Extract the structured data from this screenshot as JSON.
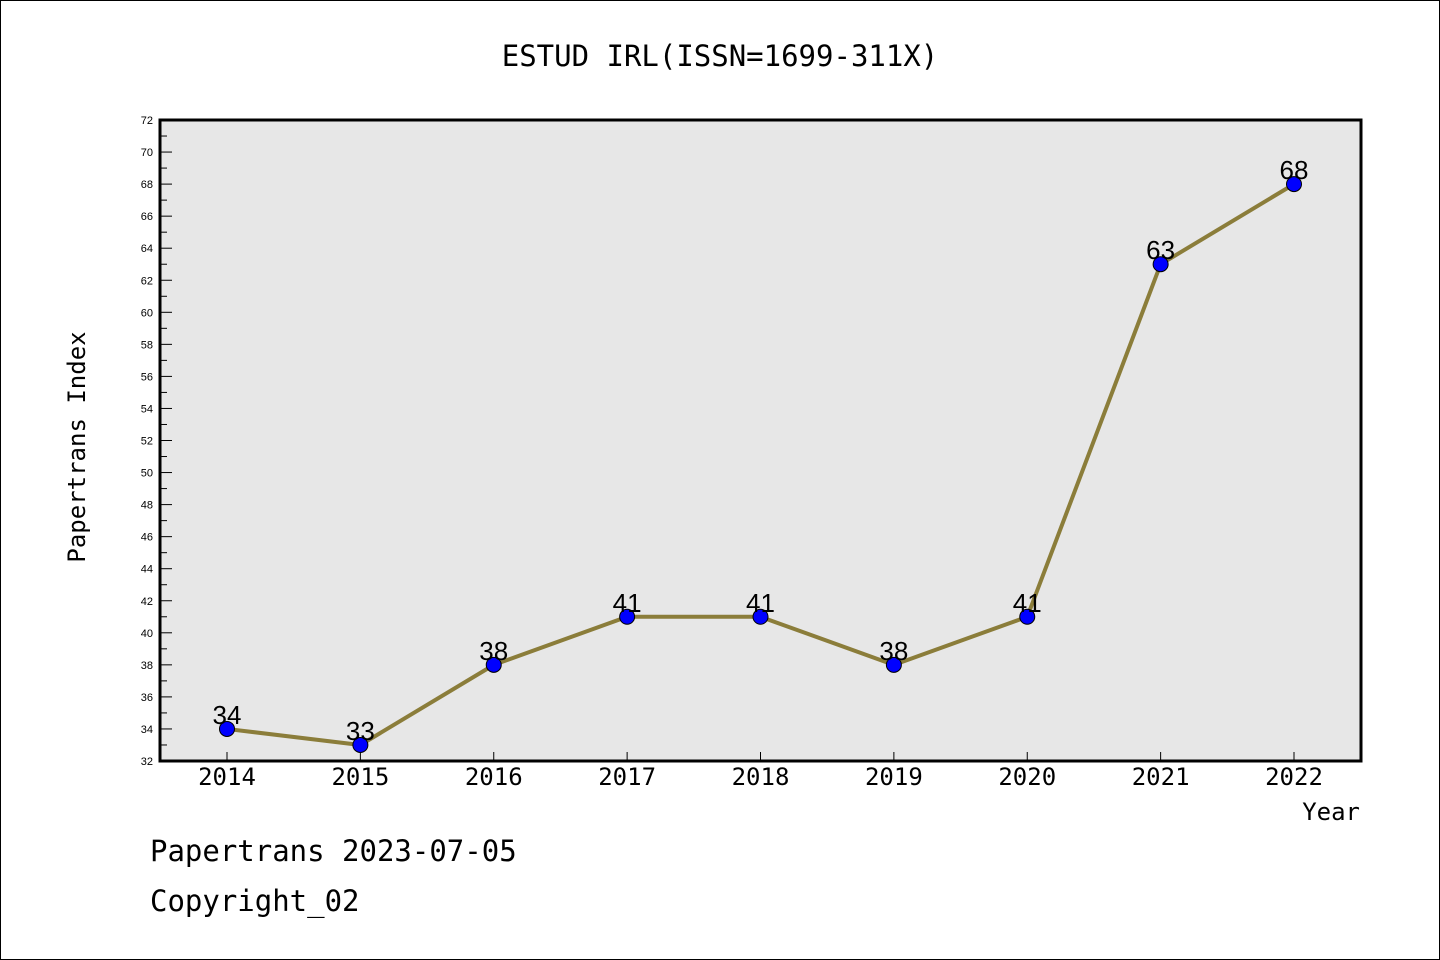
{
  "chart_data": {
    "type": "line",
    "title": "ESTUD IRL(ISSN=1699-311X)",
    "xlabel": "Year",
    "ylabel": "Papertrans Index",
    "categories": [
      "2014",
      "2015",
      "2016",
      "2017",
      "2018",
      "2019",
      "2020",
      "2021",
      "2022"
    ],
    "values": [
      34,
      33,
      38,
      41,
      41,
      38,
      41,
      63,
      68
    ],
    "data_labels": [
      "34",
      "33",
      "38",
      "41",
      "41",
      "38",
      "41",
      "63",
      "68"
    ],
    "ylim": [
      32,
      72
    ],
    "y_major_step": 2,
    "y_tick_labels": [
      "32",
      "34",
      "36",
      "38",
      "40",
      "42",
      "44",
      "46",
      "48",
      "50",
      "52",
      "54",
      "56",
      "58",
      "60",
      "62",
      "64",
      "66",
      "68",
      "70",
      "72"
    ],
    "grid": false,
    "legend": "none",
    "colors": {
      "line": "#8B7D3A",
      "marker": "#0000FF",
      "plot_background": "#E7E7E7"
    }
  },
  "footer": {
    "line1": "Papertrans 2023-07-05",
    "line2": "Copyright_02"
  }
}
